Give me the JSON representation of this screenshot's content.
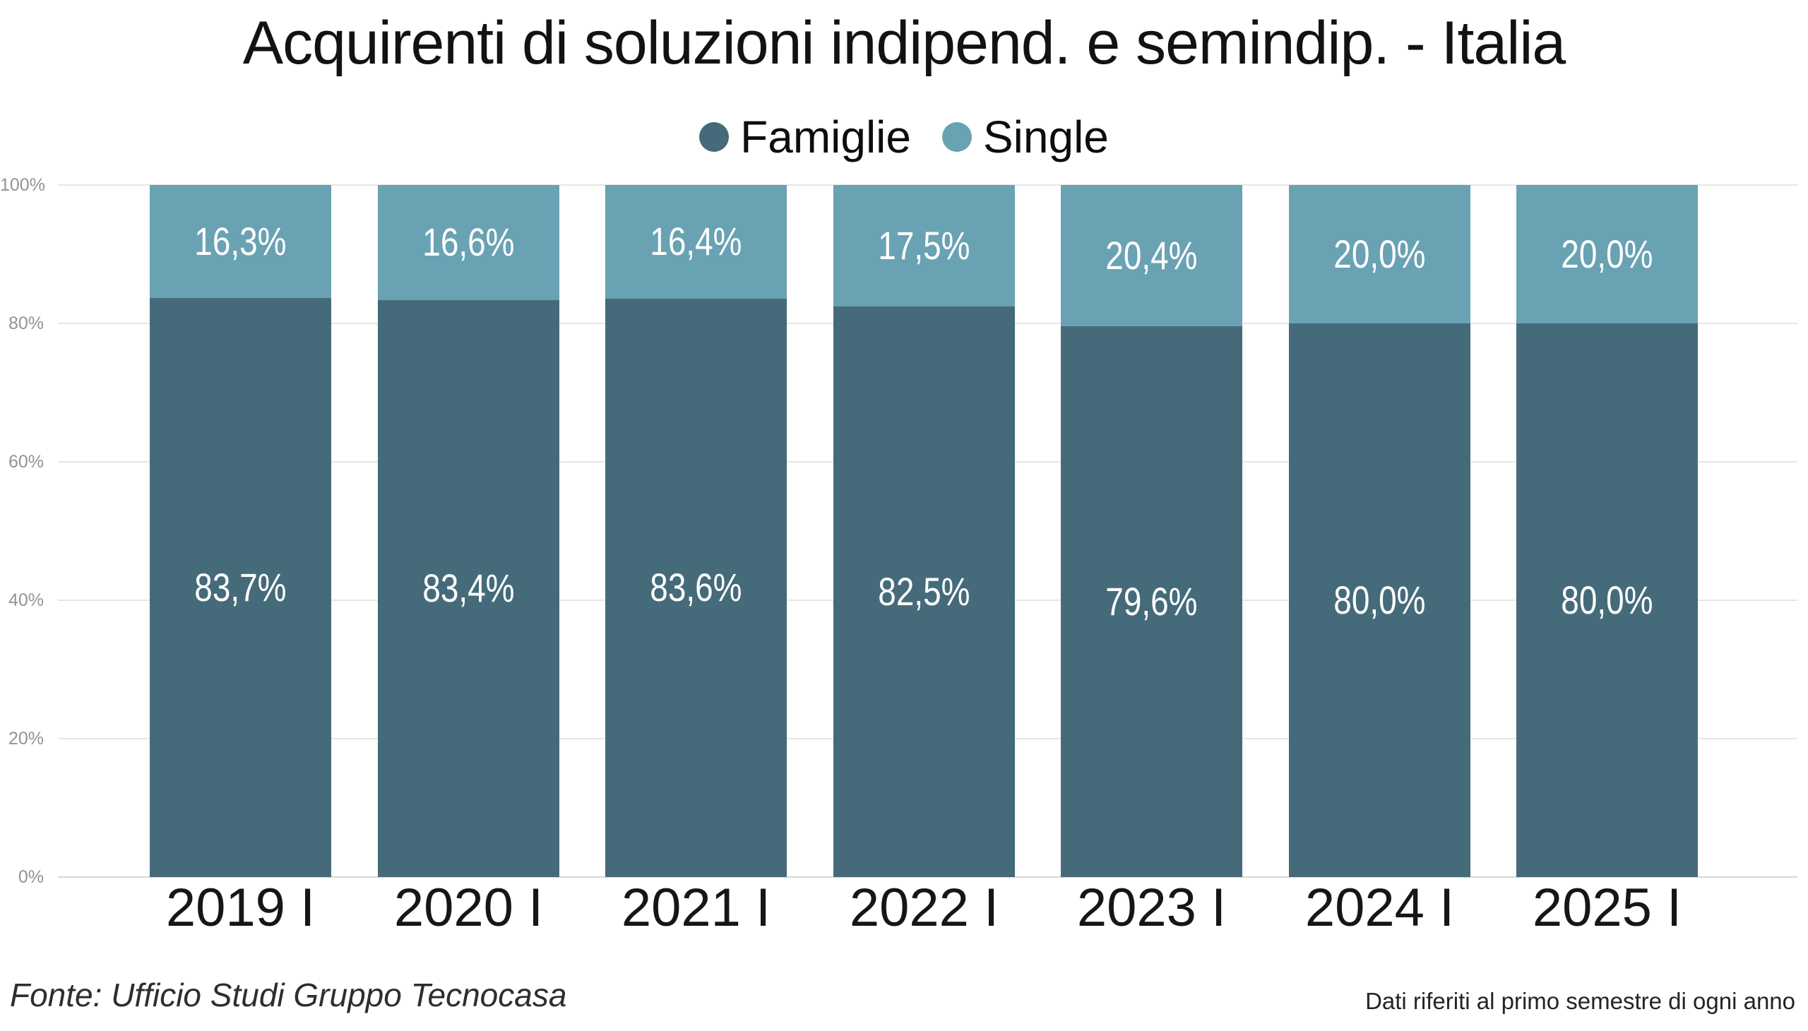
{
  "title": "Acquirenti di soluzioni indipend. e semindip. - Italia",
  "chart_data": {
    "type": "bar",
    "stacked": true,
    "title": "Acquirenti di soluzioni indipend. e semindip. - Italia",
    "categories": [
      "2019 I",
      "2020 I",
      "2021 I",
      "2022 I",
      "2023 I",
      "2024 I",
      "2025 I"
    ],
    "series": [
      {
        "name": "Famiglie",
        "color": "#456b7a",
        "values": [
          83.7,
          83.4,
          83.6,
          82.5,
          79.6,
          80.0,
          80.0
        ],
        "labels": [
          "83,7%",
          "83,4%",
          "83,6%",
          "82,5%",
          "79,6%",
          "80,0%",
          "80,0%"
        ]
      },
      {
        "name": "Single",
        "color": "#69a2b3",
        "values": [
          16.3,
          16.6,
          16.4,
          17.5,
          20.4,
          20.0,
          20.0
        ],
        "labels": [
          "16,3%",
          "16,6%",
          "16,4%",
          "17,5%",
          "20,4%",
          "20,0%",
          "20,0%"
        ]
      }
    ],
    "yticks": [
      "0%",
      "20%",
      "40%",
      "60%",
      "80%",
      "100%"
    ],
    "ylim": [
      0,
      100
    ],
    "grid": true,
    "legend_position": "top",
    "value_label_color": "#ffffff"
  },
  "footer": {
    "source": "Fonte: Ufficio Studi Gruppo Tecnocasa",
    "note": "Dati riferiti al primo semestre di ogni anno"
  }
}
